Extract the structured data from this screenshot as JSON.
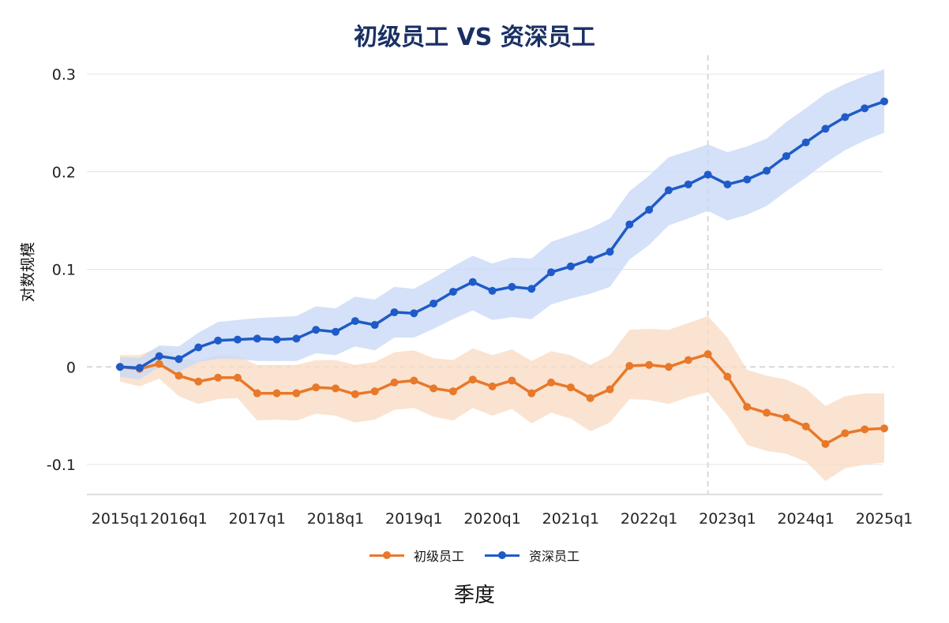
{
  "chart_data": {
    "type": "line",
    "title": "初级员工 VS 资深员工",
    "xlabel": "季度",
    "ylabel": "对数规模",
    "ylim": [
      -0.13,
      0.32
    ],
    "y_ticks": [
      0.3,
      0.2,
      0.1,
      0,
      -0.1
    ],
    "y_tick_labels": [
      "0.3",
      "0.2",
      "0.1",
      "0",
      "-0.1"
    ],
    "grid": "horizontal",
    "legend_position": "bottom-center",
    "x_tick_labels": [
      {
        "label": "2015q1",
        "index": 0
      },
      {
        "label": "2016q1",
        "index": 3
      },
      {
        "label": "2017q1",
        "index": 7
      },
      {
        "label": "2018q1",
        "index": 11
      },
      {
        "label": "2019q1",
        "index": 15
      },
      {
        "label": "2020q1",
        "index": 19
      },
      {
        "label": "2021q1",
        "index": 23
      },
      {
        "label": "2022q1",
        "index": 27
      },
      {
        "label": "2023q1",
        "index": 31
      },
      {
        "label": "2024q1",
        "index": 35
      },
      {
        "label": "2025q1",
        "index": 39
      }
    ],
    "x_reference_index": 30,
    "y_reference": 0,
    "series": [
      {
        "name": "初级员工",
        "color": "#e8782a",
        "band_color": "#f9dcc4",
        "values": [
          0,
          -0.002,
          0.003,
          -0.009,
          -0.015,
          -0.011,
          -0.011,
          -0.027,
          -0.027,
          -0.027,
          -0.021,
          -0.022,
          -0.028,
          -0.025,
          -0.016,
          -0.014,
          -0.022,
          -0.025,
          -0.013,
          -0.02,
          -0.014,
          -0.027,
          -0.016,
          -0.021,
          -0.032,
          -0.023,
          0.001,
          0.002,
          0,
          0.007,
          0.013,
          -0.01,
          -0.041,
          -0.047,
          -0.052,
          -0.061,
          -0.079,
          -0.068,
          -0.064,
          -0.063
        ],
        "lower": [
          -0.015,
          -0.02,
          -0.012,
          -0.03,
          -0.038,
          -0.033,
          -0.032,
          -0.055,
          -0.054,
          -0.055,
          -0.048,
          -0.05,
          -0.057,
          -0.054,
          -0.044,
          -0.042,
          -0.051,
          -0.055,
          -0.042,
          -0.05,
          -0.043,
          -0.058,
          -0.047,
          -0.053,
          -0.066,
          -0.057,
          -0.033,
          -0.034,
          -0.038,
          -0.031,
          -0.026,
          -0.05,
          -0.08,
          -0.086,
          -0.089,
          -0.097,
          -0.117,
          -0.104,
          -0.1,
          -0.098
        ],
        "upper": [
          0.012,
          0.012,
          0.02,
          0.009,
          0.006,
          0.012,
          0.011,
          0.002,
          0.002,
          0.002,
          0.007,
          0.007,
          0.002,
          0.005,
          0.015,
          0.017,
          0.009,
          0.007,
          0.019,
          0.012,
          0.018,
          0.006,
          0.016,
          0.012,
          0.002,
          0.012,
          0.038,
          0.039,
          0.038,
          0.045,
          0.052,
          0.03,
          -0.003,
          -0.009,
          -0.013,
          -0.022,
          -0.04,
          -0.03,
          -0.027,
          -0.027
        ]
      },
      {
        "name": "资深员工",
        "color": "#1f5bc8",
        "band_color": "#c9daf6",
        "values": [
          0,
          -0.001,
          0.011,
          0.008,
          0.02,
          0.027,
          0.028,
          0.029,
          0.028,
          0.029,
          0.038,
          0.036,
          0.047,
          0.043,
          0.056,
          0.055,
          0.065,
          0.077,
          0.087,
          0.078,
          0.082,
          0.08,
          0.097,
          0.103,
          0.11,
          0.118,
          0.146,
          0.161,
          0.181,
          0.187,
          0.197,
          0.187,
          0.192,
          0.201,
          0.216,
          0.23,
          0.244,
          0.256,
          0.265,
          0.272
        ],
        "lower": [
          -0.01,
          -0.013,
          0.0,
          -0.005,
          0.005,
          0.008,
          0.008,
          0.006,
          0.006,
          0.006,
          0.014,
          0.012,
          0.021,
          0.017,
          0.03,
          0.03,
          0.039,
          0.049,
          0.058,
          0.048,
          0.051,
          0.049,
          0.064,
          0.07,
          0.075,
          0.082,
          0.11,
          0.125,
          0.145,
          0.152,
          0.16,
          0.15,
          0.156,
          0.165,
          0.18,
          0.194,
          0.209,
          0.222,
          0.232,
          0.24
        ],
        "upper": [
          0.01,
          0.009,
          0.022,
          0.021,
          0.035,
          0.046,
          0.048,
          0.05,
          0.051,
          0.052,
          0.062,
          0.06,
          0.072,
          0.069,
          0.082,
          0.08,
          0.091,
          0.103,
          0.114,
          0.106,
          0.112,
          0.111,
          0.128,
          0.135,
          0.142,
          0.152,
          0.18,
          0.196,
          0.215,
          0.221,
          0.228,
          0.22,
          0.226,
          0.234,
          0.251,
          0.265,
          0.28,
          0.29,
          0.298,
          0.305
        ]
      }
    ]
  }
}
